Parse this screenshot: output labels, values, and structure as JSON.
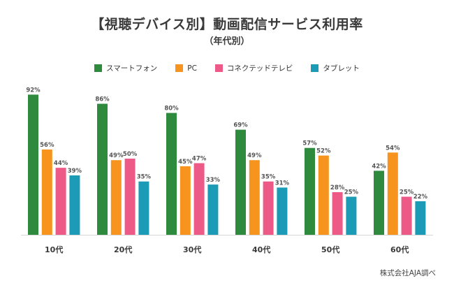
{
  "chart_data": {
    "type": "bar",
    "title": "【視聴デバイス別】動画配信サービス利用率",
    "subtitle": "（年代別）",
    "xlabel": "",
    "ylabel": "",
    "ylim": [
      0,
      100
    ],
    "grid": false,
    "legend_position": "top-center",
    "value_suffix": "%",
    "categories": [
      "10代",
      "20代",
      "30代",
      "40代",
      "50代",
      "60代"
    ],
    "series": [
      {
        "name": "スマートフォン",
        "color": "#2e8b3e",
        "values": [
          92,
          86,
          80,
          69,
          57,
          42
        ]
      },
      {
        "name": "PC",
        "color": "#f7941d",
        "values": [
          56,
          49,
          45,
          49,
          52,
          54
        ]
      },
      {
        "name": "コネクテッドテレビ",
        "color": "#ee5a87",
        "values": [
          44,
          50,
          47,
          35,
          28,
          25
        ]
      },
      {
        "name": "タブレット",
        "color": "#1b9bb5",
        "values": [
          39,
          35,
          33,
          31,
          25,
          22
        ]
      }
    ],
    "source": "株式会社AJA調べ"
  }
}
